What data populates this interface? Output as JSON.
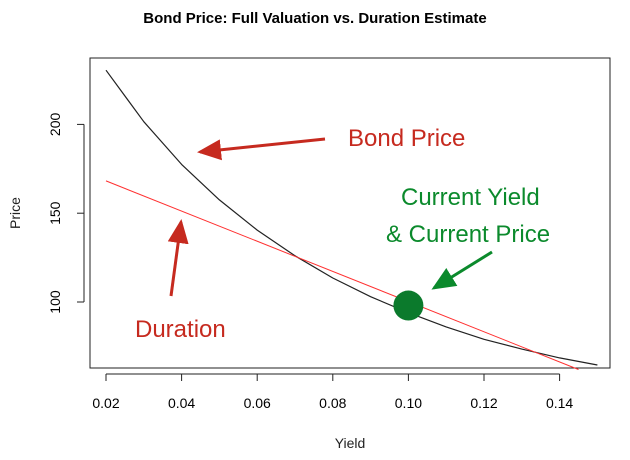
{
  "chart_data": {
    "type": "line",
    "title": "Bond Price: Full Valuation vs. Duration Estimate",
    "xlabel": "Yield",
    "ylabel": "Price",
    "xlim": [
      0.02,
      0.15
    ],
    "ylim": [
      62,
      235
    ],
    "x_ticks": [
      0.02,
      0.04,
      0.06,
      0.08,
      0.1,
      0.12,
      0.14
    ],
    "x_tick_labels": [
      "0.02",
      "0.04",
      "0.06",
      "0.08",
      "0.10",
      "0.12",
      "0.14"
    ],
    "y_ticks": [
      100,
      150,
      200
    ],
    "y_tick_labels": [
      "100",
      "150",
      "200"
    ],
    "grid": false,
    "legend": "none",
    "series": [
      {
        "color": "#222222",
        "x": [
          0.02,
          0.03,
          0.04,
          0.05,
          0.06,
          0.07,
          0.08,
          0.09,
          0.1,
          0.11,
          0.12,
          0.13,
          0.14,
          0.15
        ],
        "y": [
          230.5,
          201.5,
          177.5,
          157.5,
          140.5,
          126,
          113.5,
          103,
          94,
          86,
          79,
          73.5,
          68.5,
          64.5
        ]
      },
      {
        "color": "#ff3030",
        "x": [
          0.02,
          0.145
        ],
        "y": [
          168.2,
          62
        ]
      }
    ],
    "current_point": {
      "x": 0.1,
      "y": 98,
      "color": "#0b7a2c"
    },
    "annotations": [
      {
        "text": "Bond Price",
        "color": "#c62a1f"
      },
      {
        "text": "Current Yield",
        "color": "#0b8a2c"
      },
      {
        "text": "& Current Price",
        "color": "#0b8a2c"
      },
      {
        "text": "Duration",
        "color": "#c62a1f"
      }
    ]
  }
}
